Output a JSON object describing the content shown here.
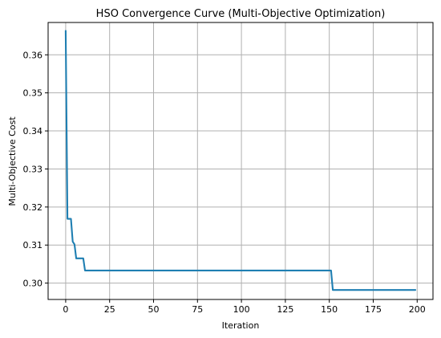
{
  "chart_data": {
    "type": "line",
    "title": "HSO Convergence Curve (Multi-Objective Optimization)",
    "xlabel": "Iteration",
    "ylabel": "Multi-Objective Cost",
    "xlim": [
      -10,
      209
    ],
    "ylim": [
      0.2957,
      0.3685
    ],
    "x_ticks": [
      0,
      25,
      50,
      75,
      100,
      125,
      150,
      175,
      200
    ],
    "y_ticks": [
      0.3,
      0.31,
      0.32,
      0.33,
      0.34,
      0.35,
      0.36
    ],
    "x_tick_labels": [
      "0",
      "25",
      "50",
      "75",
      "100",
      "125",
      "150",
      "175",
      "200"
    ],
    "y_tick_labels": [
      "0.30",
      "0.31",
      "0.32",
      "0.33",
      "0.34",
      "0.35",
      "0.36"
    ],
    "grid": true,
    "series": [
      {
        "color": "#1f7fb2",
        "points": [
          [
            0,
            0.3663
          ],
          [
            1,
            0.3169
          ],
          [
            2,
            0.3169
          ],
          [
            3,
            0.3169
          ],
          [
            4,
            0.3109
          ],
          [
            5,
            0.3102
          ],
          [
            6,
            0.3065
          ],
          [
            7,
            0.3065
          ],
          [
            8,
            0.3065
          ],
          [
            9,
            0.3065
          ],
          [
            10,
            0.3065
          ],
          [
            11,
            0.3033
          ],
          [
            12,
            0.3033
          ],
          [
            150,
            0.3033
          ],
          [
            151,
            0.3033
          ],
          [
            152,
            0.2982
          ],
          [
            199,
            0.2982
          ]
        ]
      }
    ]
  }
}
